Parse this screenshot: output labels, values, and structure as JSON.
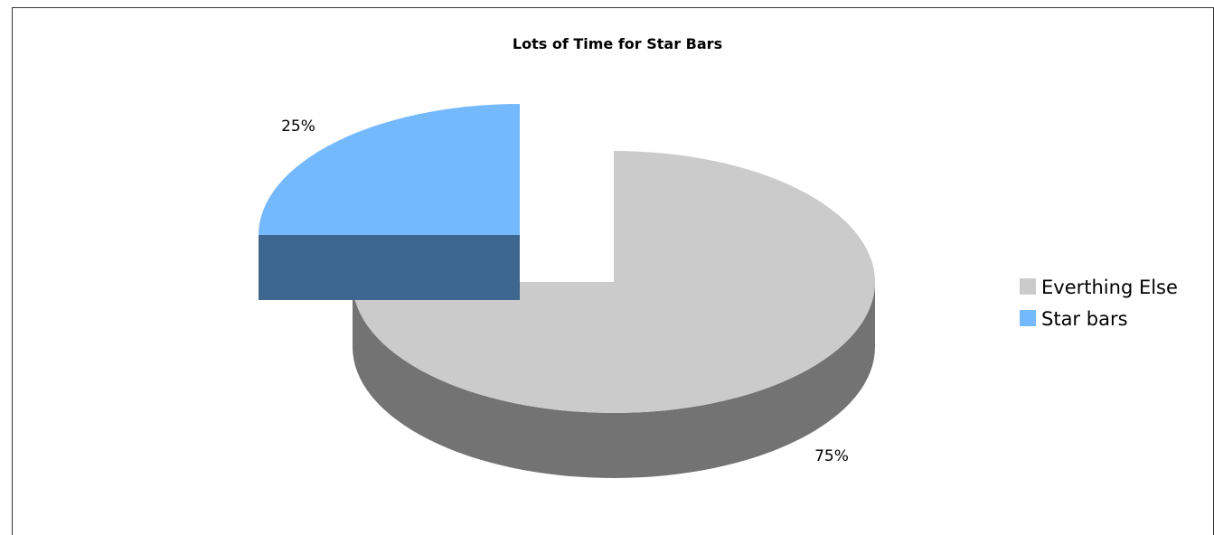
{
  "chart_data": {
    "type": "pie",
    "title": "Lots of Time for Star Bars",
    "categories": [
      "Everthing Else",
      "Star bars"
    ],
    "values": [
      75,
      25
    ],
    "data_labels": [
      "75%",
      "25%"
    ],
    "colors": {
      "Everthing Else": {
        "top": "#cbcbcb",
        "side": "#737373"
      },
      "Star bars": {
        "top": "#75b9fd",
        "side": "#3e678f"
      }
    },
    "exploded": "Star bars",
    "legend": {
      "position": "right",
      "entries": [
        {
          "label": "Everthing Else",
          "color": "#cbcbcb"
        },
        {
          "label": "Star bars",
          "color": "#75b9fd"
        }
      ]
    }
  }
}
